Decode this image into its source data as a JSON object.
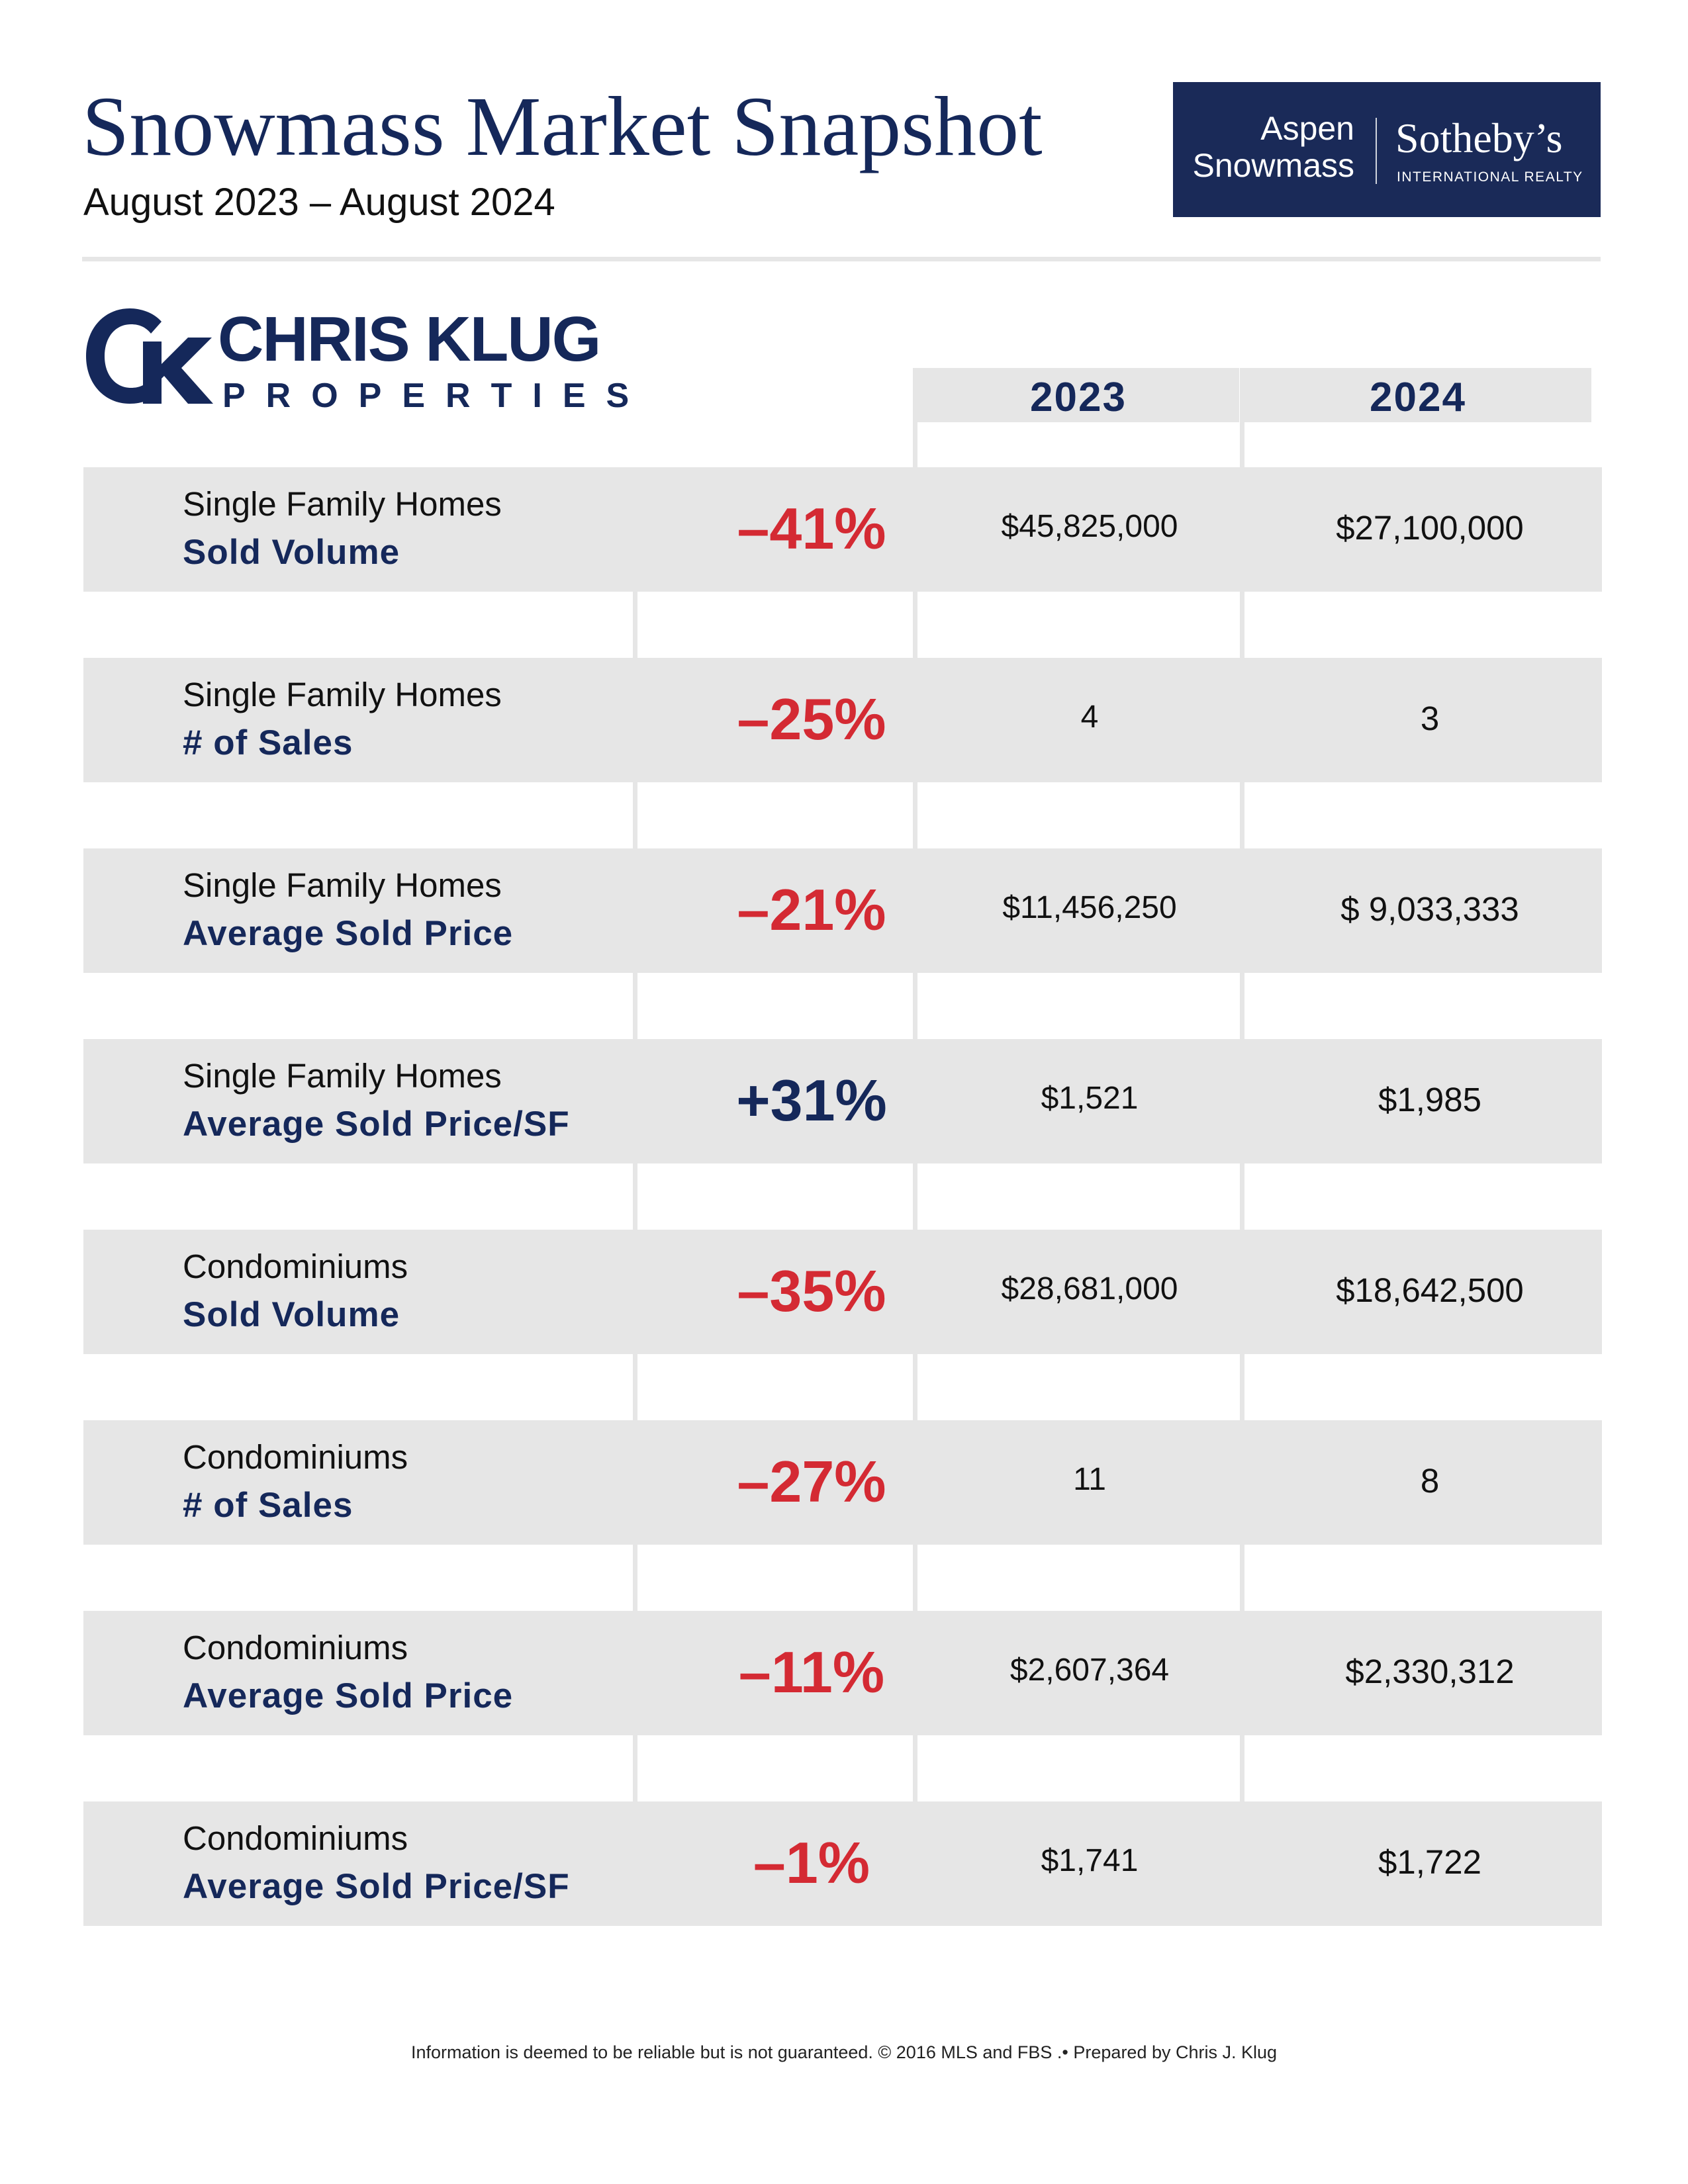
{
  "header": {
    "title": "Snowmass Market Snapshot",
    "subtitle": "August 2023 – August 2024"
  },
  "sothebys": {
    "location_line1": "Aspen",
    "location_line2": "Snowmass",
    "brand": "Sotheby’s",
    "brand_sub": "INTERNATIONAL REALTY"
  },
  "agent_logo": {
    "name": "CHRIS KLUG",
    "sub": "PROPERTIES"
  },
  "table": {
    "years": [
      "2023",
      "2024"
    ],
    "rows": [
      {
        "category": "Single Family Homes",
        "metric": "Sold Volume",
        "change": "–41%",
        "v2023": "$45,825,000",
        "v2024": "$27,100,000"
      },
      {
        "category": "Single Family Homes",
        "metric": "# of Sales",
        "change": "–25%",
        "v2023": "4",
        "v2024": "3"
      },
      {
        "category": "Single Family Homes",
        "metric": "Average Sold Price",
        "change": "–21%",
        "v2023": "$11,456,250",
        "v2024": "$ 9,033,333"
      },
      {
        "category": "Single Family Homes",
        "metric": "Average Sold Price/SF",
        "change": "+31%",
        "v2023": "$1,521",
        "v2024": "$1,985"
      },
      {
        "category": "Condominiums",
        "metric": "Sold Volume",
        "change": "–35%",
        "v2023": "$28,681,000",
        "v2024": "$18,642,500"
      },
      {
        "category": "Condominiums",
        "metric": "# of Sales",
        "change": "–27%",
        "v2023": "11",
        "v2024": "8"
      },
      {
        "category": "Condominiums",
        "metric": "Average Sold Price",
        "change": "–11%",
        "v2023": "$2,607,364",
        "v2024": "$2,330,312"
      },
      {
        "category": "Condominiums",
        "metric": "Average Sold Price/SF",
        "change": "–1%",
        "v2023": "$1,741",
        "v2024": "$1,722"
      }
    ]
  },
  "footer": {
    "text": "Information is deemed to be reliable but is not guaranteed. © 2016 MLS and FBS .• Prepared by Chris J. Klug"
  },
  "colors": {
    "navy": "#15285a",
    "red": "#d42a33",
    "band": "#e6e6e6"
  }
}
